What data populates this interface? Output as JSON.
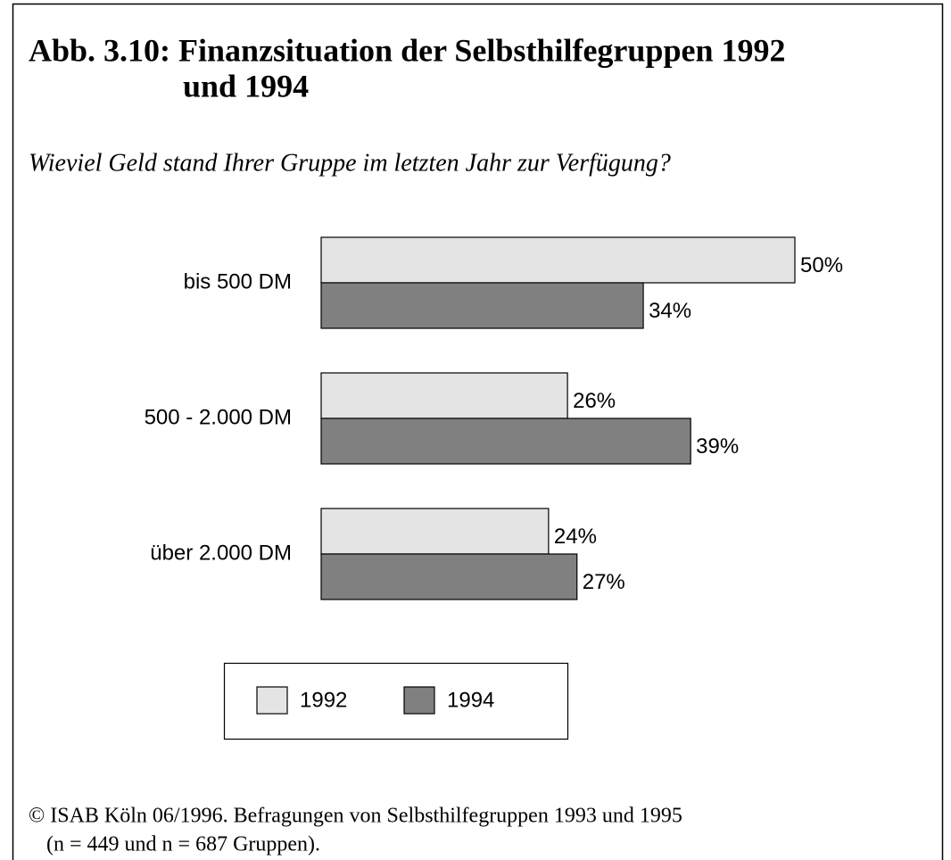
{
  "chart_data": {
    "type": "bar",
    "orientation": "horizontal",
    "title": [
      "Abb. 3.10: Finanzsituation der Selbsthilfegruppen 1992",
      "und 1994"
    ],
    "subtitle": "Wieviel Geld stand Ihrer Gruppe im letzten Jahr zur Verfügung?",
    "categories": [
      "bis 500 DM",
      "500 - 2.000 DM",
      "über 2.000 DM"
    ],
    "series": [
      {
        "name": "1992",
        "color": "#e4e4e4",
        "values": [
          50,
          26,
          24
        ],
        "value_labels": [
          "50%",
          "26%",
          "24%"
        ]
      },
      {
        "name": "1994",
        "color": "#808080",
        "values": [
          34,
          39,
          27
        ],
        "value_labels": [
          "34%",
          "39%",
          "27%"
        ]
      }
    ],
    "note": [
      "©  ISAB Köln 06/1996. Befragungen von Selbsthilfegruppen 1993 und 1995",
      "(n = 449 und n = 687 Gruppen)."
    ]
  }
}
